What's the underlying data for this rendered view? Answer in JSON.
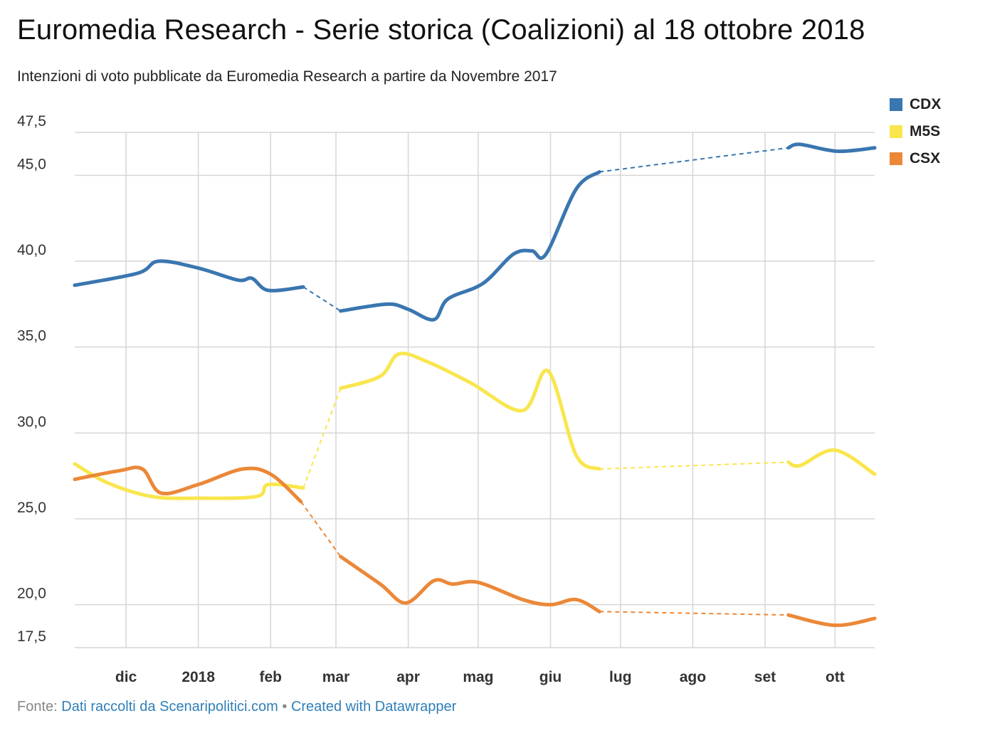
{
  "title": "Euromedia Research - Serie storica (Coalizioni) al 18 ottobre 2018",
  "subtitle": "Intenzioni di voto pubblicate da Euromedia Research a partire da Novembre 2017",
  "footer": {
    "prefix": "Fonte: ",
    "source_link": "Dati raccolti da Scenaripolitici.com",
    "separator": " • ",
    "created_link": "Created with Datawrapper"
  },
  "chart_data": {
    "type": "line",
    "title": "Euromedia Research - Serie storica (Coalizioni) al 18 ottobre 2018",
    "xlabel": "",
    "ylabel": "",
    "x_ticks": [
      {
        "label": "dic",
        "date": "2017-12-01"
      },
      {
        "label": "2018",
        "date": "2018-01-01"
      },
      {
        "label": "feb",
        "date": "2018-02-01"
      },
      {
        "label": "mar",
        "date": "2018-03-01"
      },
      {
        "label": "apr",
        "date": "2018-04-01"
      },
      {
        "label": "mag",
        "date": "2018-05-01"
      },
      {
        "label": "giu",
        "date": "2018-06-01"
      },
      {
        "label": "lug",
        "date": "2018-07-01"
      },
      {
        "label": "ago",
        "date": "2018-08-01"
      },
      {
        "label": "set",
        "date": "2018-09-01"
      },
      {
        "label": "ott",
        "date": "2018-10-01"
      }
    ],
    "xlim": [
      "2017-11-09",
      "2018-10-18"
    ],
    "y_ticks": [
      "47,5",
      "45,0",
      "40,0",
      "35,0",
      "30,0",
      "25,0",
      "20,0",
      "17,5"
    ],
    "ylim": [
      17.5,
      47.5
    ],
    "grid": true,
    "legend_position": "top-right",
    "series": [
      {
        "name": "CDX",
        "color": "#3a76b0",
        "segments": [
          {
            "style": "solid",
            "points": [
              [
                "2017-11-09",
                38.6
              ],
              [
                "2017-12-06",
                39.3
              ],
              [
                "2017-12-15",
                40.0
              ],
              [
                "2018-01-01",
                39.6
              ],
              [
                "2018-01-18",
                38.9
              ],
              [
                "2018-01-24",
                39.0
              ],
              [
                "2018-01-31",
                38.3
              ],
              [
                "2018-02-15",
                38.5
              ]
            ]
          },
          {
            "style": "dashed",
            "points": [
              [
                "2018-02-15",
                38.5
              ],
              [
                "2018-03-03",
                37.1
              ]
            ]
          },
          {
            "style": "solid",
            "points": [
              [
                "2018-03-03",
                37.1
              ],
              [
                "2018-03-23",
                37.5
              ],
              [
                "2018-04-01",
                37.2
              ],
              [
                "2018-04-12",
                36.6
              ],
              [
                "2018-04-18",
                37.8
              ],
              [
                "2018-05-03",
                38.7
              ],
              [
                "2018-05-16",
                40.4
              ],
              [
                "2018-05-24",
                40.6
              ],
              [
                "2018-05-30",
                40.4
              ],
              [
                "2018-06-12",
                44.2
              ],
              [
                "2018-06-22",
                45.2
              ]
            ]
          },
          {
            "style": "dashed",
            "points": [
              [
                "2018-06-22",
                45.2
              ],
              [
                "2018-09-11",
                46.6
              ]
            ]
          },
          {
            "style": "solid",
            "points": [
              [
                "2018-09-11",
                46.6
              ],
              [
                "2018-09-16",
                46.8
              ],
              [
                "2018-10-02",
                46.4
              ],
              [
                "2018-10-18",
                46.6
              ]
            ]
          }
        ]
      },
      {
        "name": "M5S",
        "color": "#f9e64e",
        "segments": [
          {
            "style": "solid",
            "points": [
              [
                "2017-11-09",
                28.2
              ],
              [
                "2017-11-23",
                27.1
              ],
              [
                "2017-12-12",
                26.3
              ],
              [
                "2018-01-01",
                26.2
              ],
              [
                "2018-01-26",
                26.3
              ],
              [
                "2018-01-31",
                27.0
              ],
              [
                "2018-02-15",
                26.8
              ]
            ]
          },
          {
            "style": "dashed",
            "points": [
              [
                "2018-02-15",
                26.8
              ],
              [
                "2018-03-03",
                32.6
              ]
            ]
          },
          {
            "style": "solid",
            "points": [
              [
                "2018-03-03",
                32.6
              ],
              [
                "2018-03-20",
                33.3
              ],
              [
                "2018-03-28",
                34.6
              ],
              [
                "2018-04-10",
                34.1
              ],
              [
                "2018-04-28",
                32.9
              ],
              [
                "2018-05-20",
                31.3
              ],
              [
                "2018-05-31",
                33.6
              ],
              [
                "2018-06-12",
                28.7
              ],
              [
                "2018-06-22",
                27.9
              ]
            ]
          },
          {
            "style": "dashed",
            "points": [
              [
                "2018-06-22",
                27.9
              ],
              [
                "2018-09-11",
                28.3
              ]
            ]
          },
          {
            "style": "solid",
            "points": [
              [
                "2018-09-11",
                28.3
              ],
              [
                "2018-09-16",
                28.1
              ],
              [
                "2018-10-01",
                29.0
              ],
              [
                "2018-10-18",
                27.6
              ]
            ]
          }
        ]
      },
      {
        "name": "CSX",
        "color": "#eb8838",
        "segments": [
          {
            "style": "solid",
            "points": [
              [
                "2017-11-09",
                27.3
              ],
              [
                "2017-11-28",
                27.8
              ],
              [
                "2017-12-08",
                27.9
              ],
              [
                "2017-12-16",
                26.5
              ],
              [
                "2018-01-01",
                27.0
              ],
              [
                "2018-01-20",
                27.9
              ],
              [
                "2018-02-01",
                27.6
              ],
              [
                "2018-02-14",
                26.0
              ]
            ]
          },
          {
            "style": "dashed",
            "points": [
              [
                "2018-02-14",
                26.0
              ],
              [
                "2018-03-03",
                22.8
              ]
            ]
          },
          {
            "style": "solid",
            "points": [
              [
                "2018-03-03",
                22.8
              ],
              [
                "2018-03-20",
                21.2
              ],
              [
                "2018-03-31",
                20.1
              ],
              [
                "2018-04-12",
                21.4
              ],
              [
                "2018-04-20",
                21.2
              ],
              [
                "2018-05-01",
                21.3
              ],
              [
                "2018-05-20",
                20.3
              ],
              [
                "2018-06-01",
                20.0
              ],
              [
                "2018-06-12",
                20.3
              ],
              [
                "2018-06-22",
                19.6
              ]
            ]
          },
          {
            "style": "dashed",
            "points": [
              [
                "2018-06-22",
                19.6
              ],
              [
                "2018-09-11",
                19.4
              ]
            ]
          },
          {
            "style": "solid",
            "points": [
              [
                "2018-09-11",
                19.4
              ],
              [
                "2018-10-01",
                18.8
              ],
              [
                "2018-10-18",
                19.2
              ]
            ]
          }
        ]
      }
    ]
  }
}
